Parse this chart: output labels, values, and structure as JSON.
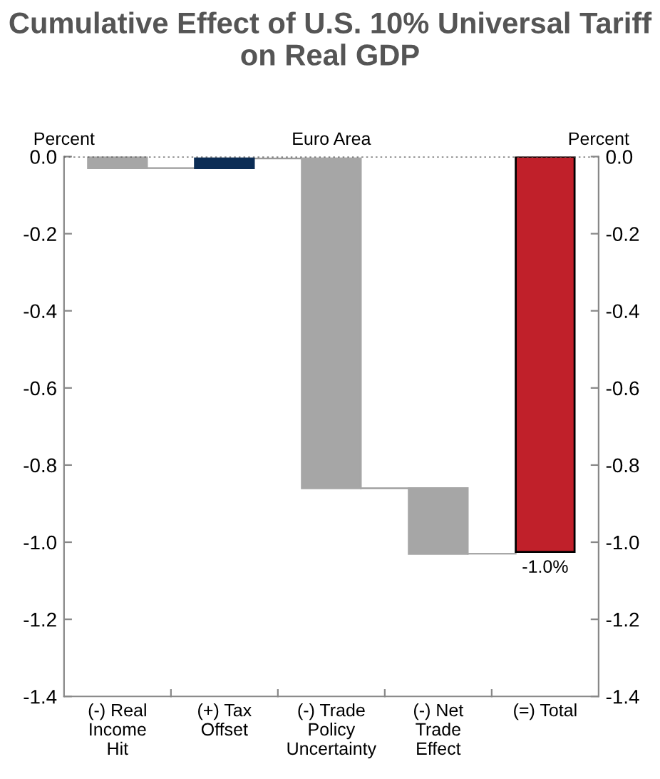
{
  "chart_data": {
    "type": "bar",
    "title": "Cumulative Effect of U.S. 10% Universal Tariff on Real GDP",
    "subtitle": "Euro Area",
    "ylabel": "Percent",
    "y2label": "Percent",
    "categories": [
      "(-) Real\nIncome\nHit",
      "(+) Tax\nOffset",
      "(-) Trade\nPolicy\nUncertainty",
      "(-) Net\nTrade\nEffect",
      "(=) Total"
    ],
    "values": [
      -0.03,
      0.025,
      -0.855,
      -0.17,
      -1.025
    ],
    "base": [
      0,
      -0.03,
      -0.005,
      -0.86,
      0
    ],
    "colors": [
      "#a6a6a6",
      "#0c2d55",
      "#a6a6a6",
      "#a6a6a6",
      "#c0202a"
    ],
    "value_labels": [
      null,
      null,
      null,
      null,
      "-1.0%"
    ],
    "ylim": [
      -1.4,
      0
    ],
    "yticks": [
      {
        "value": 0,
        "label": "0.0"
      },
      {
        "value": -0.2,
        "label": "-0.2"
      },
      {
        "value": -0.4,
        "label": "-0.4"
      },
      {
        "value": -0.6,
        "label": "-0.6"
      },
      {
        "value": -0.8,
        "label": "-0.8"
      },
      {
        "value": -1.0,
        "label": "-1.0"
      },
      {
        "value": -1.2,
        "label": "-1.2"
      },
      {
        "value": -1.4,
        "label": "-1.4"
      }
    ],
    "y2lim": [
      -1.4,
      0
    ],
    "y2ticks": [
      {
        "value": 0,
        "label": "0.0"
      },
      {
        "value": -0.2,
        "label": "-0.2"
      },
      {
        "value": -0.4,
        "label": "-0.4"
      },
      {
        "value": -0.6,
        "label": "-0.6"
      },
      {
        "value": -0.8,
        "label": "-0.8"
      },
      {
        "value": -1.0,
        "label": "-1.0"
      },
      {
        "value": -1.2,
        "label": "-1.2"
      },
      {
        "value": -1.4,
        "label": "-1.4"
      }
    ],
    "ref_lines": [
      {
        "axis": "y",
        "value": 0,
        "color": "#555555",
        "line_style": "dotted"
      }
    ],
    "grid": false,
    "legend": false
  }
}
